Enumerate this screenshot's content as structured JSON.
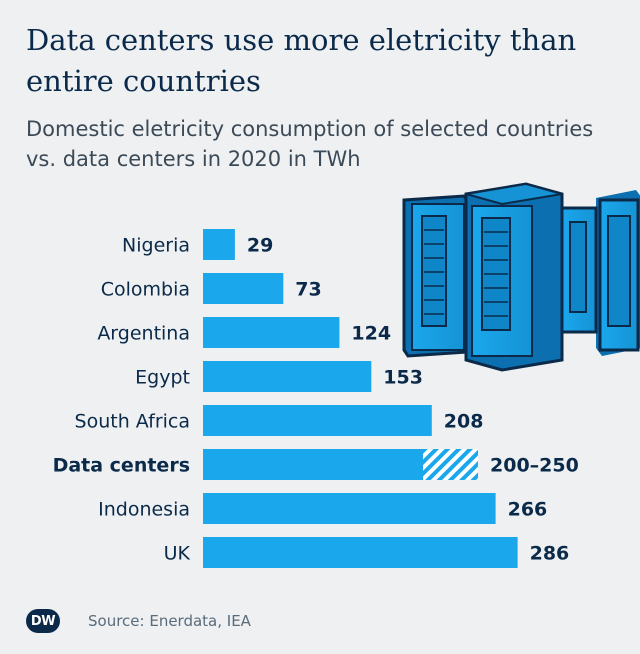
{
  "title": "Data centers use more eletricity than entire countries",
  "subtitle": "Domestic eletricity consumption of selected countries vs. data centers in 2020 in TWh",
  "source": "Source: Enerdata, IEA",
  "logo_text": "DW",
  "colors": {
    "bar": "#1ba7ec",
    "text": "#0b2a4a",
    "background": "#eef0f2"
  },
  "chart_data": {
    "type": "bar",
    "orientation": "horizontal",
    "categories": [
      "Nigeria",
      "Colombia",
      "Argentina",
      "Egypt",
      "South Africa",
      "Data centers",
      "Indonesia",
      "UK"
    ],
    "values": [
      29,
      73,
      124,
      153,
      208,
      [
        200,
        250
      ],
      266,
      286
    ],
    "value_labels": [
      "29",
      "73",
      "124",
      "153",
      "208",
      "200–250",
      "266",
      "286"
    ],
    "highlight": "Data centers",
    "title": "Data centers use more eletricity than entire countries",
    "subtitle": "Domestic eletricity consumption of selected countries vs. data centers in 2020 in TWh",
    "xlim": [
      0,
      286
    ],
    "grid": false,
    "legend": "none",
    "decoration": "server-racks-icon"
  }
}
